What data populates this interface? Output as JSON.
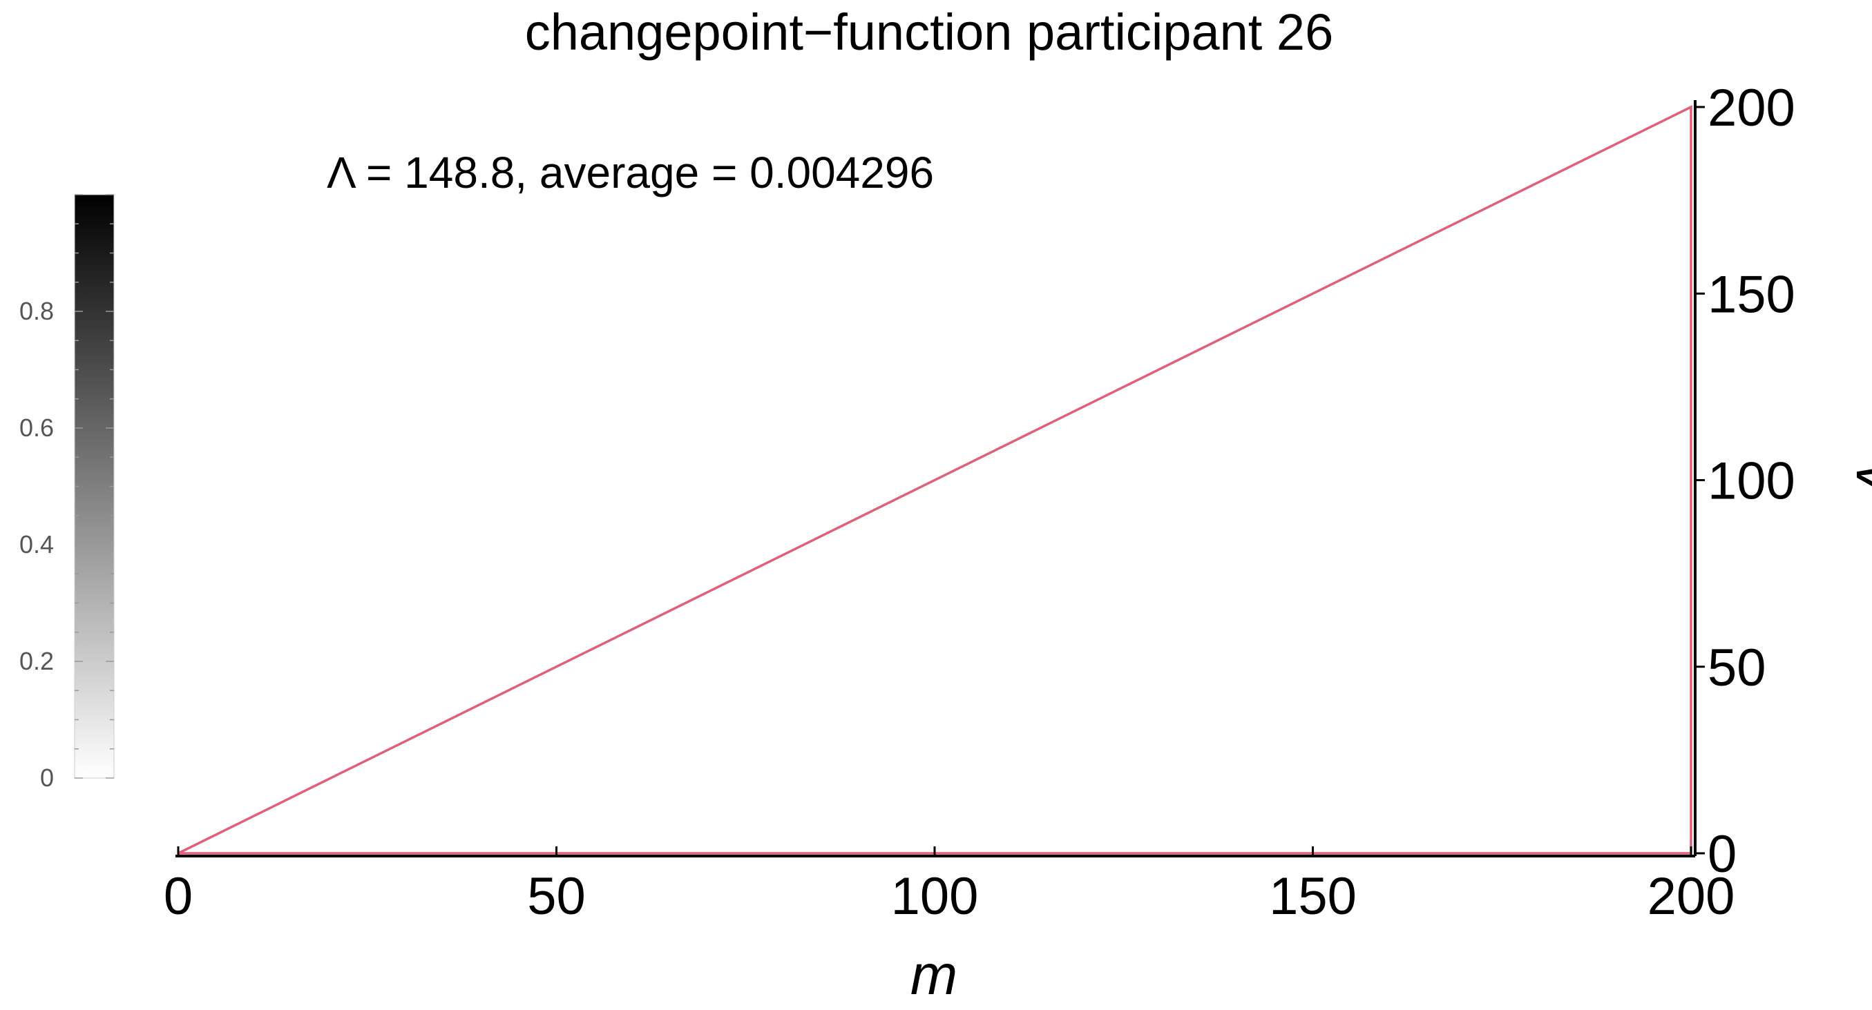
{
  "chart_data": {
    "type": "heatmap",
    "title": "changepoint−function participant 26",
    "annotation": "Λ = 148.8,   average = 0.004296",
    "xlabel": "m",
    "ylabel": "v",
    "xlim": [
      0,
      200
    ],
    "ylim": [
      0,
      200
    ],
    "x_ticks": [
      "0",
      "50",
      "100",
      "150",
      "200"
    ],
    "y_ticks": [
      "0",
      "50",
      "100",
      "150",
      "200"
    ],
    "grid": false,
    "y_axis_side": "right",
    "region_outline": {
      "description_shape": "triangle",
      "vertices": [
        [
          0,
          0
        ],
        [
          200,
          200
        ],
        [
          200,
          0
        ]
      ],
      "color": "#e0607a"
    },
    "heat_values": "all near 0 (uniformly white)",
    "colorbar": {
      "placement": "left",
      "range": [
        0,
        1
      ],
      "ticks": [
        "0",
        "0.2",
        "0.4",
        "0.6",
        "0.8"
      ],
      "low_color": "#ffffff",
      "high_color": "#000000"
    }
  }
}
